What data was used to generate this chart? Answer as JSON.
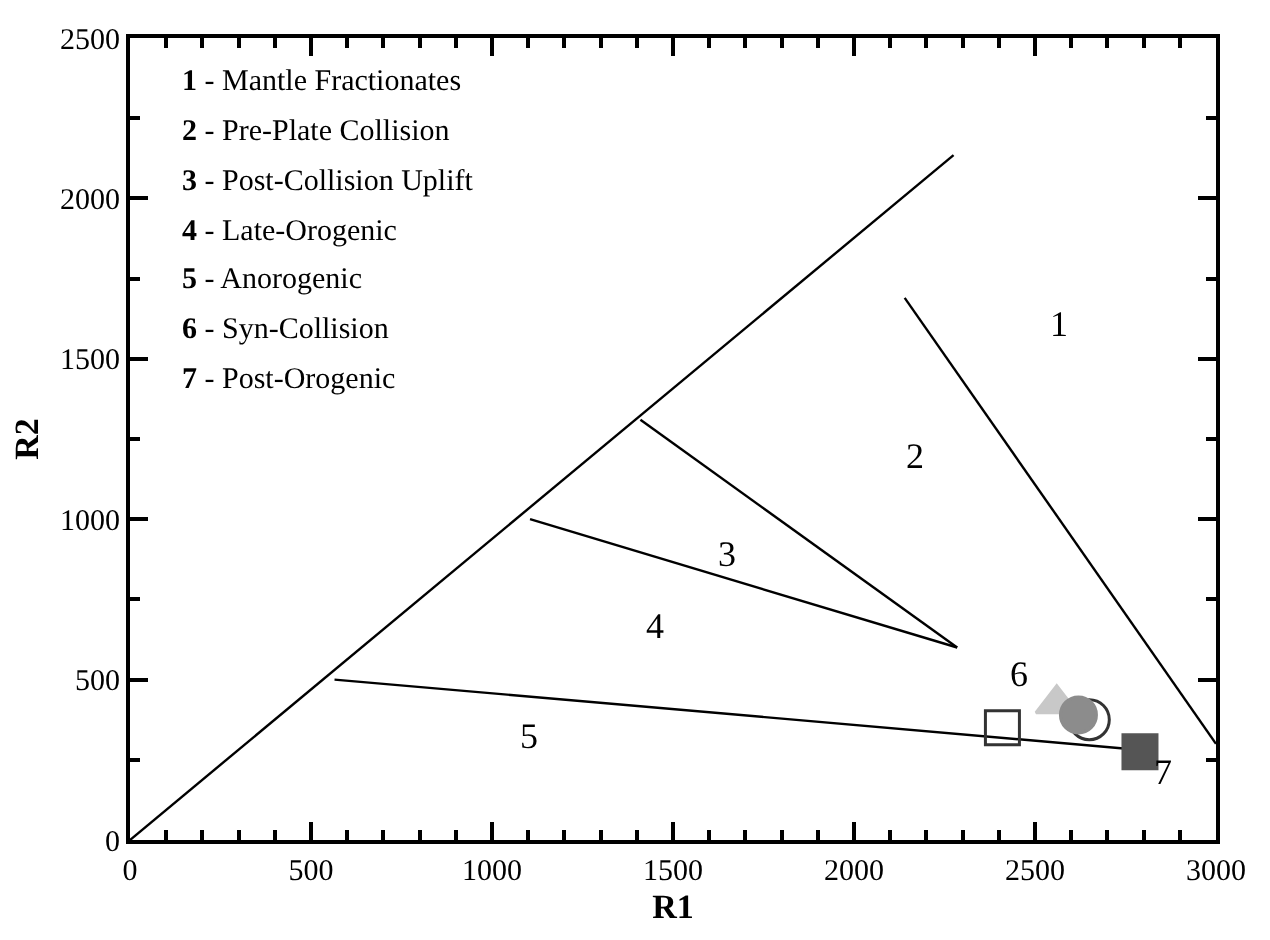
{
  "chart_data": {
    "type": "scatter",
    "xlabel": "R1",
    "ylabel": "R2",
    "xlim": [
      0,
      3000
    ],
    "ylim": [
      0,
      2500
    ],
    "xticks": [
      0,
      500,
      1000,
      1500,
      2000,
      2500,
      3000
    ],
    "yticks": [
      0,
      500,
      1000,
      1500,
      2000,
      2500
    ],
    "series": [
      {
        "type": "line",
        "color": "#000000",
        "marker": "none",
        "x": [
          0,
          2275
        ],
        "values": [
          0,
          2135
        ]
      },
      {
        "type": "line",
        "color": "#000000",
        "marker": "none",
        "x": [
          2140,
          3000
        ],
        "values": [
          1690,
          300
        ]
      },
      {
        "type": "line",
        "color": "#000000",
        "marker": "none",
        "x": [
          1410,
          2285
        ],
        "values": [
          1310,
          600
        ]
      },
      {
        "type": "line",
        "color": "#000000",
        "marker": "none",
        "x": [
          1105,
          2285
        ],
        "values": [
          1000,
          600
        ]
      },
      {
        "type": "line",
        "color": "#000000",
        "marker": "none",
        "x": [
          565,
          2800
        ],
        "values": [
          500,
          280
        ]
      },
      {
        "color": "#333333",
        "marker": "square-open",
        "x": [
          2410
        ],
        "values": [
          350
        ]
      },
      {
        "color": "#333333",
        "marker": "circle-open",
        "x": [
          2650
        ],
        "values": [
          375
        ]
      },
      {
        "color": "#c8c8c8",
        "marker": "triangle",
        "x": [
          2560
        ],
        "values": [
          425
        ]
      },
      {
        "color": "#8c8c8c",
        "marker": "circle",
        "x": [
          2620
        ],
        "values": [
          390
        ]
      },
      {
        "color": "#555555",
        "marker": "square",
        "x": [
          2790
        ],
        "values": [
          275
        ]
      }
    ],
    "annotations": [
      "1 - Mantle Fractionates",
      "2 - Pre-Plate Collision",
      "3 - Post-Collision Uplift",
      "4 - Late-Orogenic",
      "5 - Anorogenic",
      "6 - Syn-Collision",
      "7 - Post-Orogenic",
      "1",
      "2",
      "3",
      "4",
      "5",
      "6",
      "7"
    ]
  }
}
